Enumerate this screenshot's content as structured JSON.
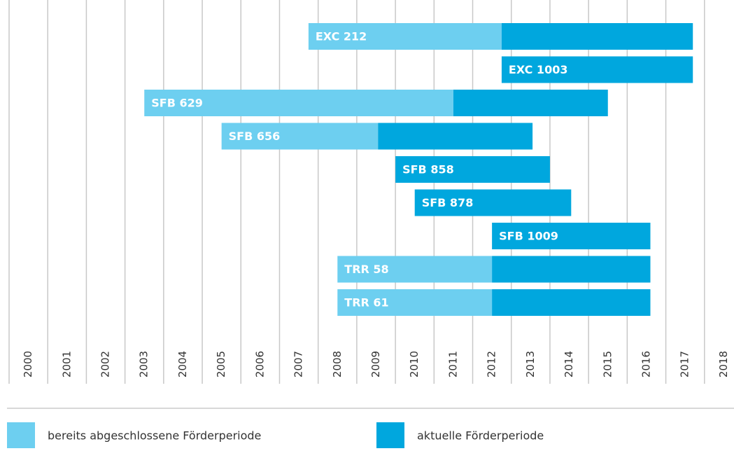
{
  "chart_data": {
    "type": "gantt",
    "xlim": [
      2000,
      2019
    ],
    "xticks": [
      2000,
      2001,
      2002,
      2003,
      2004,
      2005,
      2006,
      2007,
      2008,
      2009,
      2010,
      2011,
      2012,
      2013,
      2014,
      2015,
      2016,
      2017,
      2018
    ],
    "grid": true,
    "series": [
      {
        "name": "bereits abgeschlossene Förderperiode",
        "color": "#6dcff0"
      },
      {
        "name": "aktuelle Förderperiode",
        "color": "#00a7de"
      }
    ],
    "tasks": [
      {
        "label": "EXC 212",
        "completed": [
          2007.75,
          2012.75
        ],
        "current": [
          2012.75,
          2017.7
        ]
      },
      {
        "label": "EXC 1003",
        "completed": null,
        "current": [
          2012.75,
          2017.7
        ]
      },
      {
        "label": "SFB 629",
        "completed": [
          2003.5,
          2011.5
        ],
        "current": [
          2011.5,
          2015.5
        ]
      },
      {
        "label": "SFB 656",
        "completed": [
          2005.5,
          2009.55
        ],
        "current": [
          2009.55,
          2013.55
        ]
      },
      {
        "label": "SFB 858",
        "completed": null,
        "current": [
          2010,
          2014
        ]
      },
      {
        "label": "SFB 878",
        "completed": null,
        "current": [
          2010.5,
          2014.55
        ]
      },
      {
        "label": "SFB 1009",
        "completed": null,
        "current": [
          2012.5,
          2016.6
        ]
      },
      {
        "label": "TRR 58",
        "completed": [
          2008.5,
          2012.5
        ],
        "current": [
          2012.5,
          2016.6
        ]
      },
      {
        "label": "TRR 61",
        "completed": [
          2008.5,
          2012.5
        ],
        "current": [
          2012.5,
          2016.6
        ]
      }
    ]
  }
}
